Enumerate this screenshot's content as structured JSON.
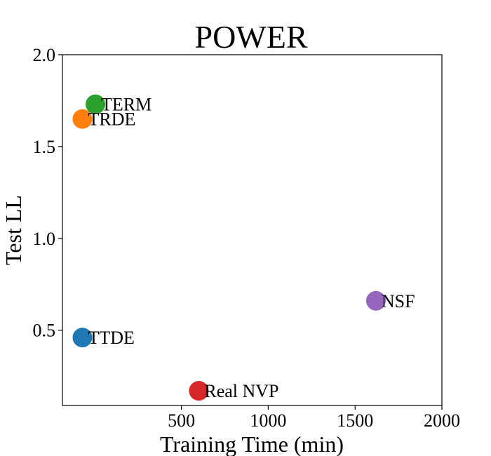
{
  "chart_data": {
    "type": "scatter",
    "title": "POWER",
    "xlabel": "Training Time (min)",
    "ylabel": "Test LL",
    "xlim": [
      -185,
      2000
    ],
    "ylim": [
      0.09,
      2.0
    ],
    "xticks": [
      500,
      1000,
      1500,
      2000
    ],
    "xtick_labels": [
      "500",
      "1000",
      "1500",
      "2000"
    ],
    "yticks": [
      0.5,
      1.0,
      1.5,
      2.0
    ],
    "ytick_labels": [
      "0.5",
      "1.0",
      "1.5",
      "2.0"
    ],
    "grid": false,
    "legend": "none",
    "points": [
      {
        "label": "TERM",
        "x": 5,
        "y": 1.73,
        "color": "#2ca02c"
      },
      {
        "label": "TRDE",
        "x": -70,
        "y": 1.65,
        "color": "#ff7f0e"
      },
      {
        "label": "NSF",
        "x": 1620,
        "y": 0.66,
        "color": "#9467bd"
      },
      {
        "label": "TTDE",
        "x": -70,
        "y": 0.46,
        "color": "#1f77b4"
      },
      {
        "label": "Real NVP",
        "x": 600,
        "y": 0.17,
        "color": "#d62728"
      }
    ]
  }
}
